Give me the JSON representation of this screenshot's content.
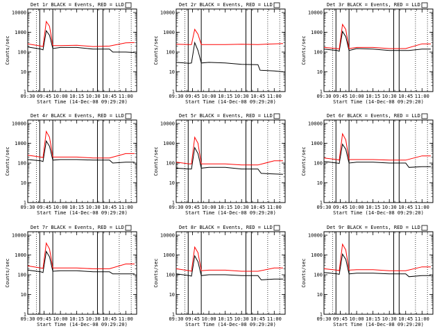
{
  "chart_data": [
    {
      "type": "line",
      "title": "Det 1r BLACK = Events, RED = LLD",
      "xlabel": "Start Time (14-Dec-08 09:29:20)",
      "ylabel": "Counts/sec",
      "x_ticks": [
        "09:30",
        "09:45",
        "10:00",
        "10:15",
        "10:30",
        "10:45",
        "11:00"
      ],
      "xlim": [
        "09:30",
        "11:10"
      ],
      "y_ticks": [
        "1",
        "10",
        "100",
        "1000",
        "10000"
      ],
      "ylim": [
        1,
        15000
      ],
      "y_scale": "log",
      "series": [
        {
          "color": "#000000",
          "x": [
            "09:30",
            "09:42",
            "09:44",
            "09:47",
            "09:50",
            "09:53",
            "10:00",
            "10:15",
            "10:30",
            "10:45",
            "10:48",
            "11:00",
            "11:08"
          ],
          "values": [
            180,
            140,
            130,
            1200,
            700,
            150,
            170,
            170,
            140,
            140,
            100,
            100,
            95
          ]
        },
        {
          "color": "#ff0000",
          "x": [
            "09:30",
            "09:42",
            "09:44",
            "09:47",
            "09:50",
            "09:53",
            "10:00",
            "10:15",
            "10:30",
            "10:45",
            "11:00",
            "11:08"
          ],
          "values": [
            260,
            200,
            190,
            3500,
            2000,
            210,
            210,
            220,
            190,
            200,
            290,
            300
          ]
        }
      ],
      "vlines_solid": [
        "09:41",
        "09:53",
        "10:34",
        "10:39"
      ],
      "vlines_dotted": [
        "09:38",
        "10:54",
        "11:05"
      ]
    },
    {
      "type": "line",
      "title": "Det 2r BLACK = Events, RED = LLD",
      "xlabel": "Start Time (14-Dec-08 09:29:20)",
      "ylabel": "Counts/sec",
      "x_ticks": [
        "09:30",
        "09:45",
        "10:00",
        "10:15",
        "10:30",
        "10:45",
        "11:00"
      ],
      "xlim": [
        "09:30",
        "11:10"
      ],
      "y_ticks": [
        "1",
        "10",
        "100",
        "1000",
        "10000"
      ],
      "ylim": [
        1,
        15000
      ],
      "y_scale": "log",
      "series": [
        {
          "color": "#000000",
          "x": [
            "09:30",
            "09:42",
            "09:44",
            "09:47",
            "09:50",
            "09:53",
            "10:00",
            "10:15",
            "10:30",
            "10:45",
            "10:47",
            "11:00",
            "11:08"
          ],
          "values": [
            30,
            27,
            28,
            300,
            120,
            28,
            30,
            28,
            24,
            23,
            12,
            11,
            10
          ]
        },
        {
          "color": "#ff0000",
          "x": [
            "09:30",
            "09:42",
            "09:44",
            "09:47",
            "09:50",
            "09:53",
            "10:00",
            "10:15",
            "10:30",
            "10:45",
            "11:00",
            "11:08"
          ],
          "values": [
            250,
            240,
            240,
            1400,
            800,
            240,
            240,
            240,
            250,
            240,
            260,
            270
          ]
        }
      ],
      "vlines_solid": [
        "09:41",
        "09:53",
        "10:34",
        "10:39"
      ],
      "vlines_dotted": [
        "09:38",
        "10:54",
        "11:05"
      ]
    },
    {
      "type": "line",
      "title": "Det 3r BLACK = Events, RED = LLD",
      "xlabel": "Start Time (14-Dec-08 09:29:20)",
      "ylabel": "Counts/sec",
      "x_ticks": [
        "09:30",
        "09:45",
        "10:00",
        "10:15",
        "10:30",
        "10:45",
        "11:00"
      ],
      "xlim": [
        "09:30",
        "11:10"
      ],
      "y_ticks": [
        "1",
        "10",
        "100",
        "1000",
        "10000"
      ],
      "ylim": [
        1,
        15000
      ],
      "y_scale": "log",
      "series": [
        {
          "color": "#000000",
          "x": [
            "09:30",
            "09:42",
            "09:44",
            "09:47",
            "09:50",
            "09:53",
            "10:00",
            "10:15",
            "10:30",
            "10:45",
            "10:48",
            "11:00",
            "11:08"
          ],
          "values": [
            140,
            120,
            110,
            1100,
            600,
            120,
            150,
            140,
            120,
            120,
            120,
            140,
            140
          ]
        },
        {
          "color": "#ff0000",
          "x": [
            "09:30",
            "09:42",
            "09:44",
            "09:47",
            "09:50",
            "09:53",
            "10:00",
            "10:15",
            "10:30",
            "10:45",
            "11:00",
            "11:08"
          ],
          "values": [
            170,
            150,
            140,
            2500,
            1400,
            150,
            170,
            170,
            150,
            150,
            260,
            260
          ]
        }
      ],
      "vlines_solid": [
        "09:41",
        "09:53",
        "10:34",
        "10:39"
      ],
      "vlines_dotted": [
        "09:38",
        "10:54",
        "11:05"
      ]
    },
    {
      "type": "line",
      "title": "Det 4r BLACK = Events, RED = LLD",
      "xlabel": "Start Time (14-Dec-08 09:29:20)",
      "ylabel": "Counts/sec",
      "x_ticks": [
        "09:30",
        "09:45",
        "10:00",
        "10:15",
        "10:30",
        "10:45",
        "11:00"
      ],
      "xlim": [
        "09:30",
        "11:10"
      ],
      "y_ticks": [
        "1",
        "10",
        "100",
        "1000",
        "10000"
      ],
      "ylim": [
        1,
        15000
      ],
      "y_scale": "log",
      "series": [
        {
          "color": "#000000",
          "x": [
            "09:30",
            "09:42",
            "09:44",
            "09:47",
            "09:50",
            "09:53",
            "10:00",
            "10:15",
            "10:30",
            "10:45",
            "10:48",
            "11:00",
            "11:08"
          ],
          "values": [
            150,
            130,
            120,
            1300,
            700,
            140,
            150,
            150,
            140,
            140,
            100,
            110,
            110
          ]
        },
        {
          "color": "#ff0000",
          "x": [
            "09:30",
            "09:42",
            "09:44",
            "09:47",
            "09:50",
            "09:53",
            "10:00",
            "10:15",
            "10:30",
            "10:45",
            "11:00",
            "11:08"
          ],
          "values": [
            250,
            200,
            190,
            4000,
            2000,
            200,
            200,
            200,
            180,
            180,
            300,
            300
          ]
        }
      ],
      "vlines_solid": [
        "09:41",
        "09:53",
        "10:34",
        "10:39"
      ],
      "vlines_dotted": [
        "09:38",
        "10:54",
        "11:05"
      ]
    },
    {
      "type": "line",
      "title": "Det 5r BLACK = Events, RED = LLD",
      "xlabel": "Start Time (14-Dec-08 09:29:20)",
      "ylabel": "Counts/sec",
      "x_ticks": [
        "09:30",
        "09:45",
        "10:00",
        "10:15",
        "10:30",
        "10:45",
        "11:00"
      ],
      "xlim": [
        "09:30",
        "11:10"
      ],
      "y_ticks": [
        "1",
        "10",
        "100",
        "1000",
        "10000"
      ],
      "ylim": [
        1,
        15000
      ],
      "y_scale": "log",
      "series": [
        {
          "color": "#000000",
          "x": [
            "09:30",
            "09:42",
            "09:44",
            "09:47",
            "09:50",
            "09:53",
            "10:00",
            "10:15",
            "10:30",
            "10:45",
            "10:48",
            "11:00",
            "11:08"
          ],
          "values": [
            55,
            50,
            50,
            600,
            300,
            55,
            60,
            60,
            50,
            50,
            30,
            28,
            27
          ]
        },
        {
          "color": "#ff0000",
          "x": [
            "09:30",
            "09:42",
            "09:44",
            "09:47",
            "09:50",
            "09:53",
            "10:00",
            "10:15",
            "10:30",
            "10:45",
            "11:00",
            "11:08"
          ],
          "values": [
            110,
            90,
            90,
            2000,
            1000,
            90,
            90,
            90,
            80,
            80,
            130,
            130
          ]
        }
      ],
      "vlines_solid": [
        "09:41",
        "09:53",
        "10:34",
        "10:39"
      ],
      "vlines_dotted": [
        "09:38",
        "10:54",
        "11:05"
      ]
    },
    {
      "type": "line",
      "title": "Det 6r BLACK = Events, RED = LLD",
      "xlabel": "Start Time (14-Dec-08 09:29:20)",
      "ylabel": "Counts/sec",
      "x_ticks": [
        "09:30",
        "09:45",
        "10:00",
        "10:15",
        "10:30",
        "10:45",
        "11:00"
      ],
      "xlim": [
        "09:30",
        "11:10"
      ],
      "y_ticks": [
        "1",
        "10",
        "100",
        "1000",
        "10000"
      ],
      "ylim": [
        1,
        15000
      ],
      "y_scale": "log",
      "series": [
        {
          "color": "#000000",
          "x": [
            "09:30",
            "09:42",
            "09:44",
            "09:47",
            "09:50",
            "09:53",
            "10:00",
            "10:15",
            "10:30",
            "10:45",
            "10:48",
            "11:00",
            "11:08"
          ],
          "values": [
            120,
            100,
            95,
            900,
            500,
            100,
            110,
            110,
            100,
            100,
            60,
            65,
            65
          ]
        },
        {
          "color": "#ff0000",
          "x": [
            "09:30",
            "09:42",
            "09:44",
            "09:47",
            "09:50",
            "09:53",
            "10:00",
            "10:15",
            "10:30",
            "10:45",
            "11:00",
            "11:08"
          ],
          "values": [
            180,
            150,
            140,
            3000,
            1500,
            150,
            150,
            150,
            140,
            140,
            230,
            230
          ]
        }
      ],
      "vlines_solid": [
        "09:41",
        "09:53",
        "10:34",
        "10:39"
      ],
      "vlines_dotted": [
        "09:38",
        "10:54",
        "11:05"
      ]
    },
    {
      "type": "line",
      "title": "Det 7r BLACK = Events, RED = LLD",
      "xlabel": "Start Time (14-Dec-08 09:29:20)",
      "ylabel": "Counts/sec",
      "x_ticks": [
        "09:30",
        "09:45",
        "10:00",
        "10:15",
        "10:30",
        "10:45",
        "11:00"
      ],
      "xlim": [
        "09:30",
        "11:10"
      ],
      "y_ticks": [
        "1",
        "10",
        "100",
        "1000",
        "10000"
      ],
      "ylim": [
        1,
        15000
      ],
      "y_scale": "log",
      "series": [
        {
          "color": "#000000",
          "x": [
            "09:30",
            "09:42",
            "09:44",
            "09:47",
            "09:50",
            "09:53",
            "10:00",
            "10:15",
            "10:30",
            "10:45",
            "10:48",
            "11:00",
            "11:08"
          ],
          "values": [
            170,
            140,
            130,
            1500,
            800,
            150,
            160,
            160,
            140,
            140,
            110,
            110,
            110
          ]
        },
        {
          "color": "#ff0000",
          "x": [
            "09:30",
            "09:42",
            "09:44",
            "09:47",
            "09:50",
            "09:53",
            "10:00",
            "10:15",
            "10:30",
            "10:45",
            "11:00",
            "11:08"
          ],
          "values": [
            280,
            220,
            210,
            4000,
            2000,
            220,
            220,
            220,
            200,
            200,
            350,
            350
          ]
        }
      ],
      "vlines_solid": [
        "09:41",
        "09:53",
        "10:34",
        "10:39"
      ],
      "vlines_dotted": [
        "09:38",
        "10:54",
        "11:05"
      ]
    },
    {
      "type": "line",
      "title": "Det 8r BLACK = Events, RED = LLD",
      "xlabel": "Start Time (14-Dec-08 09:29:20)",
      "ylabel": "Counts/sec",
      "x_ticks": [
        "09:30",
        "09:45",
        "10:00",
        "10:15",
        "10:30",
        "10:45",
        "11:00"
      ],
      "xlim": [
        "09:30",
        "11:10"
      ],
      "y_ticks": [
        "1",
        "10",
        "100",
        "1000",
        "10000"
      ],
      "ylim": [
        1,
        15000
      ],
      "y_scale": "log",
      "series": [
        {
          "color": "#000000",
          "x": [
            "09:30",
            "09:42",
            "09:44",
            "09:47",
            "09:50",
            "09:53",
            "10:00",
            "10:15",
            "10:30",
            "10:45",
            "10:48",
            "11:00",
            "11:08"
          ],
          "values": [
            110,
            90,
            85,
            900,
            450,
            90,
            100,
            100,
            90,
            90,
            55,
            60,
            60
          ]
        },
        {
          "color": "#ff0000",
          "x": [
            "09:30",
            "09:42",
            "09:44",
            "09:47",
            "09:50",
            "09:53",
            "10:00",
            "10:15",
            "10:30",
            "10:45",
            "11:00",
            "11:08"
          ],
          "values": [
            200,
            160,
            150,
            2500,
            1300,
            160,
            170,
            170,
            150,
            150,
            220,
            220
          ]
        }
      ],
      "vlines_solid": [
        "09:41",
        "09:53",
        "10:34",
        "10:39"
      ],
      "vlines_dotted": [
        "09:38",
        "10:54",
        "11:05"
      ]
    },
    {
      "type": "line",
      "title": "Det 9r BLACK = Events, RED = LLD",
      "xlabel": "Start Time (14-Dec-08 09:29:20)",
      "ylabel": "Counts/sec",
      "x_ticks": [
        "09:30",
        "09:45",
        "10:00",
        "10:15",
        "10:30",
        "10:45",
        "11:00"
      ],
      "xlim": [
        "09:30",
        "11:10"
      ],
      "y_ticks": [
        "1",
        "10",
        "100",
        "1000",
        "10000"
      ],
      "ylim": [
        1,
        15000
      ],
      "y_scale": "log",
      "series": [
        {
          "color": "#000000",
          "x": [
            "09:30",
            "09:42",
            "09:44",
            "09:47",
            "09:50",
            "09:53",
            "10:00",
            "10:15",
            "10:30",
            "10:45",
            "10:48",
            "11:00",
            "11:08"
          ],
          "values": [
            130,
            110,
            105,
            1100,
            600,
            110,
            120,
            120,
            110,
            110,
            80,
            90,
            90
          ]
        },
        {
          "color": "#ff0000",
          "x": [
            "09:30",
            "09:42",
            "09:44",
            "09:47",
            "09:50",
            "09:53",
            "10:00",
            "10:15",
            "10:30",
            "10:45",
            "11:00",
            "11:08"
          ],
          "values": [
            200,
            170,
            160,
            3500,
            1800,
            170,
            180,
            180,
            160,
            160,
            250,
            250
          ]
        }
      ],
      "vlines_solid": [
        "09:41",
        "09:53",
        "10:34",
        "10:39"
      ],
      "vlines_dotted": [
        "09:38",
        "10:54",
        "11:05"
      ]
    }
  ]
}
